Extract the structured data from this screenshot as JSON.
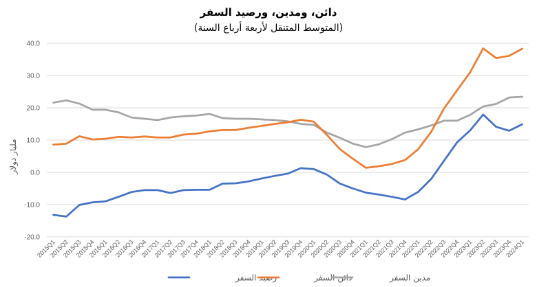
{
  "chart_data": {
    "type": "line",
    "title": "دائن، ومدين، ورصيد السفر",
    "subtitle": "(المتوسط المتنقل لأربعة أرباع السنة)",
    "ylabel": "مليار دولار",
    "xlabel": "",
    "ylim": [
      -20,
      40
    ],
    "yticks": [
      "40.0",
      "30.0",
      "20.0",
      "10.0",
      "0.0",
      "-10.0",
      "-20.0"
    ],
    "ytick_values": [
      40,
      30,
      20,
      10,
      0,
      -10,
      -20
    ],
    "grid": true,
    "legend_position": "bottom",
    "categories": [
      "2015Q1",
      "2015Q2",
      "2015Q3",
      "2015Q4",
      "2016Q1",
      "2016Q2",
      "2016Q3",
      "2016Q4",
      "2017Q1",
      "2017Q2",
      "2017Q3",
      "2017Q4",
      "2018Q1",
      "2018Q2",
      "2018Q3",
      "2018Q4",
      "2019Q1",
      "2019Q2",
      "2019Q3",
      "2019Q4",
      "2020Q1",
      "2020Q2",
      "2020Q3",
      "2020Q4",
      "2021Q1",
      "2021Q2",
      "2021Q3",
      "2021Q4",
      "2022Q1",
      "2022Q2",
      "2022Q3",
      "2022Q4",
      "2023Q1",
      "2023Q2",
      "2023Q3",
      "2023Q4",
      "2024Q1"
    ],
    "series": [
      {
        "name": "رصيد السفر",
        "color": "#4472c4",
        "values": [
          -13.2,
          -13.7,
          -10.1,
          -9.3,
          -9.0,
          -7.6,
          -6.1,
          -5.5,
          -5.5,
          -6.4,
          -5.5,
          -5.4,
          -5.4,
          -3.5,
          -3.4,
          -2.8,
          -1.9,
          -1.1,
          -0.4,
          1.3,
          1.0,
          -0.7,
          -3.5,
          -5.0,
          -6.3,
          -6.9,
          -7.6,
          -8.4,
          -6.1,
          -2.1,
          3.6,
          9.3,
          13.0,
          17.9,
          14.1,
          12.9,
          14.9
        ]
      },
      {
        "name": "دائن السفر",
        "color": "#ed7d31",
        "values": [
          8.6,
          8.9,
          11.2,
          10.2,
          10.4,
          11.0,
          10.8,
          11.1,
          10.8,
          10.8,
          11.7,
          12.0,
          12.7,
          13.1,
          13.1,
          13.8,
          14.4,
          15.0,
          15.5,
          16.3,
          15.7,
          11.6,
          7.2,
          4.2,
          1.4,
          1.9,
          2.6,
          3.8,
          7.1,
          12.5,
          19.8,
          25.4,
          31.0,
          38.4,
          35.4,
          36.1,
          38.3
        ]
      },
      {
        "name": "مدين السفر",
        "color": "#a5a5a5",
        "values": [
          21.6,
          22.3,
          21.3,
          19.4,
          19.4,
          18.6,
          17.0,
          16.6,
          16.2,
          17.0,
          17.4,
          17.6,
          18.1,
          16.8,
          16.6,
          16.6,
          16.4,
          16.2,
          15.8,
          15.0,
          14.7,
          12.3,
          10.7,
          8.9,
          7.8,
          8.7,
          10.3,
          12.3,
          13.3,
          14.5,
          16.0,
          16.0,
          17.8,
          20.4,
          21.2,
          23.2,
          23.4
        ]
      }
    ]
  }
}
